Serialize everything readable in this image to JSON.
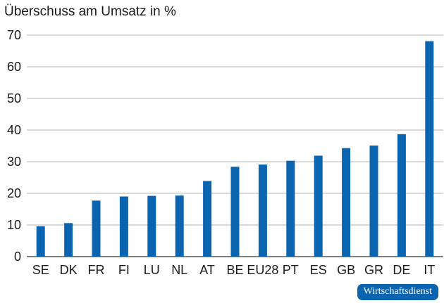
{
  "source_badge": "Wirtschaftsdienst",
  "colors": {
    "bar": "#0a64b0",
    "grid": "#9a9a9a",
    "text": "#1a1a1a"
  },
  "chart_data": {
    "type": "bar",
    "title": "Überschuss am Umsatz in %",
    "xlabel": "",
    "ylabel": "",
    "ylim": [
      0,
      70
    ],
    "yticks": [
      0,
      10,
      20,
      30,
      40,
      50,
      60,
      70
    ],
    "grid": true,
    "categories": [
      "SE",
      "DK",
      "FR",
      "FI",
      "LU",
      "NL",
      "AT",
      "BE",
      "EU28",
      "PT",
      "ES",
      "GB",
      "GR",
      "DE",
      "IT"
    ],
    "values": [
      9.6,
      10.6,
      17.7,
      19.0,
      19.2,
      19.3,
      23.9,
      28.4,
      29.1,
      30.3,
      31.9,
      34.3,
      35.1,
      38.7,
      68.1
    ]
  }
}
